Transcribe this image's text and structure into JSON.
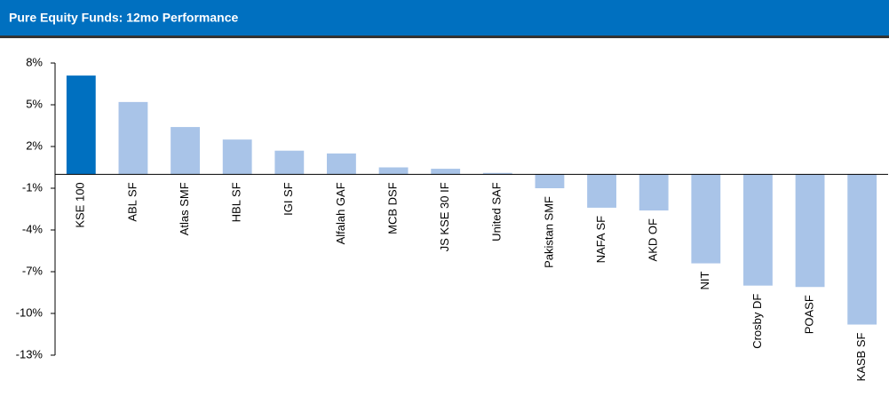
{
  "chart_data": {
    "type": "bar",
    "title": "Pure Equity Funds: 12mo Performance",
    "categories": [
      "KSE 100",
      "ABL SF",
      "Atlas SMF",
      "HBL SF",
      "IGI SF",
      "Alfalah GAF",
      "MCB DSF",
      "JS KSE 30 IF",
      "United SAF",
      "Pakistan SMF",
      "NAFA SF",
      "AKD OF",
      "NIT",
      "Crosby DF",
      "POASF",
      "KASB SF"
    ],
    "values": [
      7.1,
      5.2,
      3.4,
      2.5,
      1.7,
      1.5,
      0.5,
      0.4,
      0.1,
      -1.0,
      -2.4,
      -2.6,
      -6.4,
      -8.0,
      -8.1,
      -10.8
    ],
    "colors": [
      "#0070c0",
      "#a9c4e8",
      "#a9c4e8",
      "#a9c4e8",
      "#a9c4e8",
      "#a9c4e8",
      "#a9c4e8",
      "#a9c4e8",
      "#a9c4e8",
      "#a9c4e8",
      "#a9c4e8",
      "#a9c4e8",
      "#a9c4e8",
      "#a9c4e8",
      "#a9c4e8",
      "#a9c4e8"
    ],
    "ylim": [
      -13,
      8
    ],
    "yticks": [
      {
        "value": 8,
        "label": "8%"
      },
      {
        "value": 5,
        "label": "5%"
      },
      {
        "value": 2,
        "label": "2%"
      },
      {
        "value": -1,
        "label": "-1%"
      },
      {
        "value": -4,
        "label": "-4%"
      },
      {
        "value": -7,
        "label": "-7%"
      },
      {
        "value": -10,
        "label": "-10%"
      },
      {
        "value": -13,
        "label": "-13%"
      }
    ],
    "grid": false
  }
}
